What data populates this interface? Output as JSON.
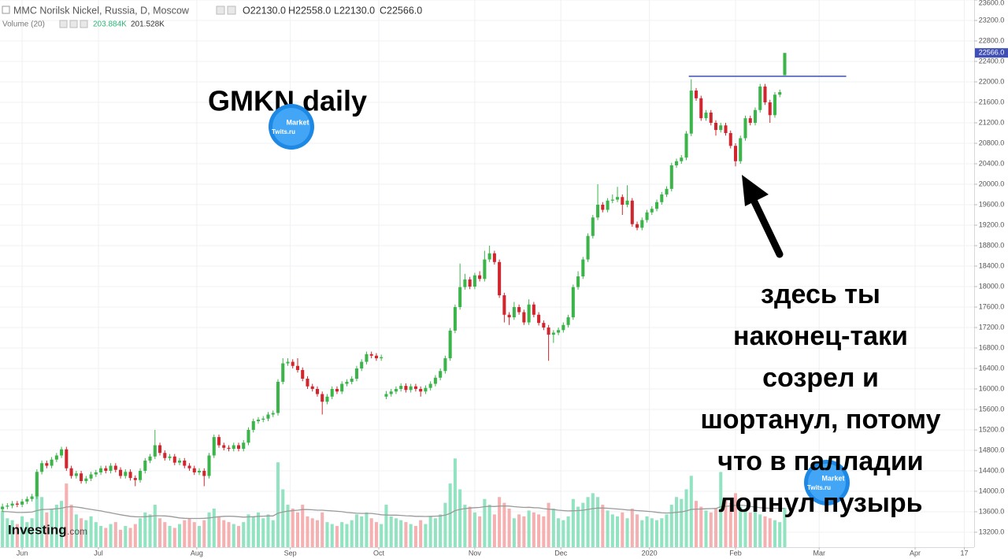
{
  "chart_data": {
    "type": "candlestick",
    "title": "MMC Norilsk Nickel, Russia, D, Moscow",
    "legend_ohlc": [
      "O22130.0",
      "H22558.0",
      "L22130.0",
      "C22566.0"
    ],
    "volume_title": "Volume (20)",
    "annotation": "GMKN daily",
    "annotation_lines": [
      "здесь ты",
      "наконец-таки",
      "созрел и",
      "шортанул, потому",
      "что в палладии",
      "лопнул пузырь"
    ],
    "watermark": [
      "Market",
      "Twits.ru"
    ],
    "brand": [
      "Investing",
      ".com"
    ],
    "up_color": "#3bb54a",
    "down_color": "#d0262e",
    "volume_up_color": "#92e3c1",
    "volume_down_color": "#f5b1b1",
    "ma_color": "#9a9a9a",
    "hline_color": "#3f4fb5",
    "grid": true,
    "xlim": [
      -0.5,
      197.5
    ],
    "xticks": [
      {
        "value": 4,
        "label": "Jun"
      },
      {
        "value": 19.5,
        "label": "Jul"
      },
      {
        "value": 39.5,
        "label": "Aug"
      },
      {
        "value": 58.5,
        "label": "Sep"
      },
      {
        "value": 76.5,
        "label": "Oct"
      },
      {
        "value": 96,
        "label": "Nov"
      },
      {
        "value": 113.5,
        "label": "Dec"
      },
      {
        "value": 131.5,
        "label": "2020"
      },
      {
        "value": 149,
        "label": "Feb"
      },
      {
        "value": 166,
        "label": "Mar"
      },
      {
        "value": 185.5,
        "label": "Apr"
      },
      {
        "value": 195.5,
        "label": "17"
      }
    ],
    "ylim": [
      12908,
      23600
    ],
    "yticks": [
      {
        "value": 13200,
        "label": "13200.0"
      },
      {
        "value": 13600,
        "label": "13600.0"
      },
      {
        "value": 14000,
        "label": "14000.0"
      },
      {
        "value": 14400,
        "label": "14400.0"
      },
      {
        "value": 14800,
        "label": "14800.0"
      },
      {
        "value": 15200,
        "label": "15200.0"
      },
      {
        "value": 15600,
        "label": "15600.0"
      },
      {
        "value": 16000,
        "label": "16000.0"
      },
      {
        "value": 16400,
        "label": "16400.0"
      },
      {
        "value": 16800,
        "label": "16800.0"
      },
      {
        "value": 17200,
        "label": "17200.0"
      },
      {
        "value": 17600,
        "label": "17600.0"
      },
      {
        "value": 18000,
        "label": "18000.0"
      },
      {
        "value": 18400,
        "label": "18400.0"
      },
      {
        "value": 18800,
        "label": "18800.0"
      },
      {
        "value": 19200,
        "label": "19200.0"
      },
      {
        "value": 19600,
        "label": "19600.0"
      },
      {
        "value": 20000,
        "label": "20000.0"
      },
      {
        "value": 20400,
        "label": "20400.0"
      },
      {
        "value": 20800,
        "label": "20800.0"
      },
      {
        "value": 21200,
        "label": "21200.0"
      },
      {
        "value": 21600,
        "label": "21600.0"
      },
      {
        "value": 22000,
        "label": "22000.0"
      },
      {
        "value": 22400,
        "label": "22400.0"
      },
      {
        "value": 22800,
        "label": "22800.0"
      },
      {
        "value": 23200,
        "label": "23200.0"
      },
      {
        "value": 23600,
        "label": "23600.0"
      }
    ],
    "last_label": {
      "value": 22566,
      "label": "22566.0"
    },
    "hline": {
      "value": 22110,
      "from": 139.5,
      "to": 171.5
    },
    "vlim": [
      0,
      1200
    ],
    "ohlc": [
      [
        13650,
        13760,
        13600,
        13700
      ],
      [
        13700,
        13770,
        13650,
        13720
      ],
      [
        13720,
        13810,
        13670,
        13760
      ],
      [
        13760,
        13810,
        13690,
        13740
      ],
      [
        13740,
        13850,
        13690,
        13800
      ],
      [
        13800,
        13900,
        13750,
        13850
      ],
      [
        13850,
        13950,
        13800,
        13900
      ],
      [
        13900,
        14430,
        13850,
        14380
      ],
      [
        14380,
        14600,
        14330,
        14550
      ],
      [
        14550,
        14600,
        14450,
        14500
      ],
      [
        14500,
        14670,
        14450,
        14620
      ],
      [
        14620,
        14750,
        14570,
        14700
      ],
      [
        14700,
        14870,
        14650,
        14820
      ],
      [
        14820,
        14870,
        14400,
        14450
      ],
      [
        14450,
        14500,
        14250,
        14300
      ],
      [
        14300,
        14400,
        14250,
        14350
      ],
      [
        14350,
        14400,
        14150,
        14200
      ],
      [
        14200,
        14300,
        14150,
        14250
      ],
      [
        14250,
        14380,
        14200,
        14330
      ],
      [
        14330,
        14420,
        14280,
        14370
      ],
      [
        14370,
        14500,
        14320,
        14450
      ],
      [
        14450,
        14500,
        14350,
        14400
      ],
      [
        14400,
        14550,
        14350,
        14500
      ],
      [
        14500,
        14550,
        14370,
        14420
      ],
      [
        14420,
        14470,
        14250,
        14300
      ],
      [
        14300,
        14430,
        14250,
        14380
      ],
      [
        14380,
        14430,
        14210,
        14260
      ],
      [
        14260,
        14310,
        14100,
        14220
      ],
      [
        14220,
        14450,
        14170,
        14400
      ],
      [
        14400,
        14650,
        14350,
        14600
      ],
      [
        14600,
        14730,
        14550,
        14680
      ],
      [
        14680,
        15200,
        14630,
        14900
      ],
      [
        14900,
        14950,
        14700,
        14750
      ],
      [
        14750,
        14800,
        14600,
        14650
      ],
      [
        14650,
        14730,
        14600,
        14680
      ],
      [
        14680,
        14730,
        14510,
        14560
      ],
      [
        14560,
        14650,
        14510,
        14600
      ],
      [
        14600,
        14650,
        14450,
        14500
      ],
      [
        14500,
        14550,
        14400,
        14450
      ],
      [
        14450,
        14500,
        14320,
        14370
      ],
      [
        14370,
        14450,
        14320,
        14400
      ],
      [
        14400,
        14450,
        14100,
        14300
      ],
      [
        14300,
        14750,
        14250,
        14700
      ],
      [
        14700,
        15110,
        14650,
        15060
      ],
      [
        15060,
        15110,
        14850,
        14900
      ],
      [
        14900,
        14950,
        14800,
        14850
      ],
      [
        14850,
        14900,
        14780,
        14830
      ],
      [
        14830,
        14950,
        14780,
        14900
      ],
      [
        14900,
        14950,
        14780,
        14830
      ],
      [
        14830,
        15000,
        14780,
        14950
      ],
      [
        14950,
        15250,
        14900,
        15200
      ],
      [
        15200,
        15420,
        15150,
        15370
      ],
      [
        15370,
        15450,
        15320,
        15400
      ],
      [
        15400,
        15470,
        15350,
        15420
      ],
      [
        15420,
        15550,
        15370,
        15500
      ],
      [
        15500,
        15580,
        15450,
        15530
      ],
      [
        15530,
        16190,
        15480,
        16140
      ],
      [
        16140,
        16600,
        16090,
        16500
      ],
      [
        16500,
        16600,
        16450,
        16530
      ],
      [
        16530,
        16580,
        16400,
        16450
      ],
      [
        16450,
        16600,
        16320,
        16370
      ],
      [
        16370,
        16420,
        16150,
        16200
      ],
      [
        16200,
        16250,
        16000,
        16050
      ],
      [
        16050,
        16100,
        15950,
        16000
      ],
      [
        16000,
        16050,
        15850,
        15900
      ],
      [
        15900,
        15950,
        15500,
        15750
      ],
      [
        15750,
        15900,
        15700,
        15850
      ],
      [
        15850,
        16050,
        15800,
        16000
      ],
      [
        16000,
        16050,
        15900,
        15950
      ],
      [
        15950,
        16150,
        15900,
        16100
      ],
      [
        16100,
        16190,
        16050,
        16140
      ],
      [
        16140,
        16250,
        16090,
        16200
      ],
      [
        16200,
        16450,
        16150,
        16400
      ],
      [
        16400,
        16580,
        16350,
        16530
      ],
      [
        16530,
        16730,
        16480,
        16680
      ],
      [
        16680,
        16730,
        16600,
        16650
      ],
      [
        16650,
        16700,
        16550,
        16600
      ],
      [
        16600,
        16670,
        16550,
        16620
      ],
      [
        15850,
        15960,
        15800,
        15900
      ],
      [
        15900,
        16000,
        15850,
        15950
      ],
      [
        15950,
        16050,
        15900,
        16000
      ],
      [
        16000,
        16110,
        15950,
        16060
      ],
      [
        16060,
        16110,
        15930,
        15980
      ],
      [
        15980,
        16100,
        15930,
        16050
      ],
      [
        16050,
        16100,
        15950,
        16000
      ],
      [
        16000,
        16050,
        15850,
        15950
      ],
      [
        15950,
        16070,
        15900,
        16020
      ],
      [
        16020,
        16150,
        15970,
        16100
      ],
      [
        16100,
        16270,
        16050,
        16220
      ],
      [
        16220,
        16400,
        16170,
        16350
      ],
      [
        16350,
        16650,
        16300,
        16600
      ],
      [
        16600,
        17190,
        16550,
        17140
      ],
      [
        17140,
        17650,
        17090,
        17600
      ],
      [
        17600,
        18450,
        17550,
        17990
      ],
      [
        17990,
        18250,
        17940,
        18140
      ],
      [
        18140,
        18190,
        17950,
        18000
      ],
      [
        18000,
        18270,
        17950,
        18220
      ],
      [
        18220,
        18300,
        18100,
        18150
      ],
      [
        18150,
        18700,
        18100,
        18530
      ],
      [
        18530,
        18800,
        18480,
        18650
      ],
      [
        18650,
        18700,
        18430,
        18480
      ],
      [
        18480,
        18530,
        17780,
        17830
      ],
      [
        17830,
        17880,
        17300,
        17450
      ],
      [
        17450,
        17500,
        17250,
        17400
      ],
      [
        17400,
        17700,
        17350,
        17600
      ],
      [
        17600,
        17650,
        17450,
        17500
      ],
      [
        17500,
        17550,
        17250,
        17300
      ],
      [
        17300,
        17750,
        17250,
        17650
      ],
      [
        17650,
        17700,
        17400,
        17450
      ],
      [
        17450,
        17500,
        17240,
        17290
      ],
      [
        17290,
        17340,
        17150,
        17200
      ],
      [
        17200,
        17250,
        16550,
        17060
      ],
      [
        17060,
        17150,
        16900,
        17100
      ],
      [
        17100,
        17200,
        17050,
        17150
      ],
      [
        17150,
        17300,
        17100,
        17250
      ],
      [
        17250,
        17450,
        17200,
        17400
      ],
      [
        17400,
        18040,
        17350,
        17990
      ],
      [
        17990,
        18300,
        17940,
        18200
      ],
      [
        18200,
        18580,
        18150,
        18530
      ],
      [
        18530,
        19040,
        18480,
        18990
      ],
      [
        18990,
        19400,
        18940,
        19350
      ],
      [
        19350,
        20000,
        19300,
        19600
      ],
      [
        19600,
        19650,
        19450,
        19500
      ],
      [
        19500,
        19730,
        19450,
        19680
      ],
      [
        19680,
        19800,
        19630,
        19700
      ],
      [
        19700,
        19950,
        19650,
        19750
      ],
      [
        19750,
        19800,
        19400,
        19600
      ],
      [
        19600,
        19980,
        19550,
        19680
      ],
      [
        19680,
        19730,
        19170,
        19220
      ],
      [
        19220,
        19270,
        19100,
        19150
      ],
      [
        19150,
        19350,
        19100,
        19300
      ],
      [
        19300,
        19500,
        19250,
        19450
      ],
      [
        19450,
        19570,
        19400,
        19520
      ],
      [
        19520,
        19700,
        19470,
        19650
      ],
      [
        19650,
        19850,
        19600,
        19800
      ],
      [
        19800,
        19960,
        19750,
        19910
      ],
      [
        19910,
        20420,
        19860,
        20370
      ],
      [
        20370,
        20500,
        20320,
        20450
      ],
      [
        20450,
        20570,
        20400,
        20520
      ],
      [
        20520,
        21040,
        20470,
        20990
      ],
      [
        20990,
        22050,
        20940,
        21830
      ],
      [
        21830,
        21880,
        21630,
        21680
      ],
      [
        21680,
        21730,
        21240,
        21290
      ],
      [
        21290,
        21450,
        21240,
        21400
      ],
      [
        21400,
        21450,
        21150,
        21200
      ],
      [
        21200,
        21250,
        20950,
        21060
      ],
      [
        21060,
        21200,
        21010,
        21150
      ],
      [
        21150,
        21200,
        20950,
        21000
      ],
      [
        21000,
        21050,
        20700,
        20750
      ],
      [
        20750,
        20800,
        20350,
        20450
      ],
      [
        20450,
        20950,
        20400,
        20900
      ],
      [
        20900,
        21340,
        20850,
        21290
      ],
      [
        21290,
        21340,
        21150,
        21200
      ],
      [
        21200,
        21500,
        21150,
        21450
      ],
      [
        21450,
        21960,
        21400,
        21910
      ],
      [
        21910,
        21960,
        21550,
        21600
      ],
      [
        21600,
        21650,
        21200,
        21350
      ],
      [
        21350,
        21800,
        21300,
        21750
      ],
      [
        21750,
        21850,
        21700,
        21800
      ],
      [
        22130,
        22558,
        22130,
        22566
      ]
    ],
    "volume": [
      190,
      150,
      140,
      120,
      160,
      130,
      150,
      380,
      260,
      180,
      200,
      220,
      240,
      330,
      220,
      170,
      150,
      140,
      160,
      130,
      110,
      100,
      120,
      130,
      90,
      110,
      100,
      120,
      150,
      180,
      170,
      220,
      150,
      130,
      110,
      100,
      120,
      140,
      150,
      130,
      110,
      140,
      180,
      200,
      160,
      140,
      130,
      120,
      110,
      130,
      170,
      160,
      180,
      150,
      170,
      140,
      440,
      300,
      220,
      200,
      180,
      220,
      160,
      150,
      140,
      180,
      130,
      120,
      110,
      130,
      120,
      140,
      170,
      160,
      180,
      150,
      130,
      120,
      220,
      160,
      150,
      140,
      130,
      120,
      110,
      140,
      120,
      160,
      150,
      170,
      230,
      330,
      460,
      300,
      220,
      210,
      180,
      160,
      250,
      220,
      170,
      260,
      230,
      200,
      150,
      170,
      160,
      190,
      180,
      170,
      160,
      230,
      200,
      150,
      140,
      160,
      250,
      210,
      230,
      260,
      280,
      260,
      220,
      190,
      170,
      160,
      180,
      150,
      200,
      170,
      140,
      160,
      150,
      140,
      150,
      170,
      220,
      260,
      250,
      300,
      370,
      240,
      210,
      190,
      180,
      200,
      390,
      250,
      230,
      280,
      210,
      200,
      180,
      190,
      170,
      160,
      150,
      140,
      130,
      203.884
    ],
    "volume_ma": [
      185,
      184,
      182,
      180,
      180,
      181,
      182,
      190,
      195,
      196,
      197,
      199,
      202,
      208,
      210,
      208,
      205,
      200,
      196,
      192,
      188,
      183,
      178,
      173,
      168,
      164,
      160,
      158,
      157,
      158,
      160,
      163,
      163,
      162,
      160,
      156,
      152,
      150,
      149,
      149,
      149,
      150,
      152,
      155,
      158,
      160,
      161,
      160,
      158,
      156,
      157,
      158,
      160,
      161,
      162,
      162,
      176,
      183,
      187,
      190,
      192,
      195,
      195,
      194,
      192,
      192,
      190,
      188,
      186,
      184,
      180,
      178,
      176,
      175,
      175,
      175,
      172,
      168,
      167,
      166,
      166,
      165,
      163,
      162,
      160,
      160,
      159,
      160,
      161,
      162,
      166,
      175,
      190,
      196,
      200,
      203,
      205,
      206,
      210,
      212,
      211,
      213,
      214,
      213,
      210,
      208,
      206,
      207,
      205,
      204,
      200,
      197,
      195,
      192,
      190,
      188,
      189,
      190,
      192,
      196,
      200,
      203,
      203,
      202,
      200,
      198,
      196,
      193,
      192,
      190,
      188,
      186,
      184,
      181,
      178,
      177,
      178,
      181,
      183,
      188,
      196,
      197,
      198,
      199,
      200,
      201,
      210,
      212,
      214,
      217,
      218,
      216,
      212,
      208,
      205,
      203,
      202,
      201,
      200,
      201.528
    ],
    "volume_value_labels": {
      "volume": "203.884K",
      "volume_ma": "201.528K"
    }
  }
}
